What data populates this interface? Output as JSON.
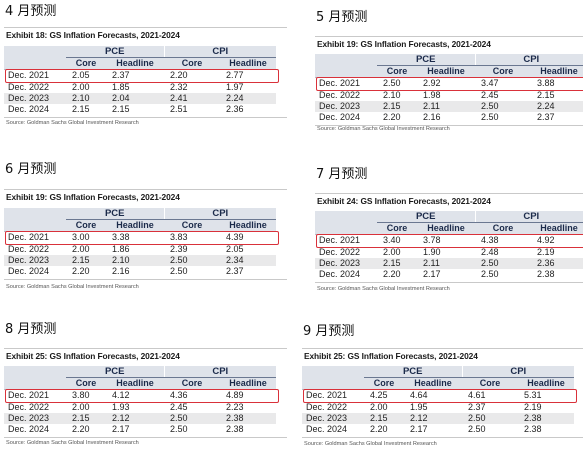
{
  "panels": [
    {
      "month": "4 月预测",
      "title": "Exhibit 18: GS Inflation Forecasts, 2021-2024",
      "group_pce": "PCE",
      "group_cpi": "CPI",
      "sub": [
        "Core",
        "Headline",
        "Core",
        "Headline"
      ],
      "rows": [
        [
          "Dec. 2021",
          "2.05",
          "2.37",
          "2.20",
          "2.77"
        ],
        [
          "Dec. 2022",
          "2.00",
          "1.85",
          "2.32",
          "1.97"
        ],
        [
          "Dec. 2023",
          "2.10",
          "2.04",
          "2.41",
          "2.24"
        ],
        [
          "Dec. 2024",
          "2.15",
          "2.15",
          "2.51",
          "2.36"
        ]
      ],
      "source": "Source: Goldman Sachs Global Investment Research"
    },
    {
      "month": "5 月预测",
      "title": "Exhibit 19: GS Inflation Forecasts, 2021-2024",
      "group_pce": "PCE",
      "group_cpi": "CPI",
      "sub": [
        "Core",
        "Headline",
        "Core",
        "Headline"
      ],
      "rows": [
        [
          "Dec. 2021",
          "2.50",
          "2.92",
          "3.47",
          "3.88"
        ],
        [
          "Dec. 2022",
          "2.10",
          "1.98",
          "2.45",
          "2.15"
        ],
        [
          "Dec. 2023",
          "2.15",
          "2.11",
          "2.50",
          "2.24"
        ],
        [
          "Dec. 2024",
          "2.20",
          "2.16",
          "2.50",
          "2.37"
        ]
      ],
      "source": "Source: Goldman Sachs Global Investment Research"
    },
    {
      "month": "6 月预测",
      "title": "Exhibit 19: GS Inflation Forecasts, 2021-2024",
      "group_pce": "PCE",
      "group_cpi": "CPI",
      "sub": [
        "Core",
        "Headline",
        "Core",
        "Headline"
      ],
      "rows": [
        [
          "Dec. 2021",
          "3.00",
          "3.38",
          "3.83",
          "4.39"
        ],
        [
          "Dec. 2022",
          "2.00",
          "1.86",
          "2.39",
          "2.05"
        ],
        [
          "Dec. 2023",
          "2.15",
          "2.10",
          "2.50",
          "2.34"
        ],
        [
          "Dec. 2024",
          "2.20",
          "2.16",
          "2.50",
          "2.37"
        ]
      ],
      "source": "Source: Goldman Sachs Global Investment Research"
    },
    {
      "month": "7 月预测",
      "title": "Exhibit 24: GS Inflation Forecasts, 2021-2024",
      "group_pce": "PCE",
      "group_cpi": "CPI",
      "sub": [
        "Core",
        "Headline",
        "Core",
        "Headline"
      ],
      "rows": [
        [
          "Dec. 2021",
          "3.40",
          "3.78",
          "4.38",
          "4.92"
        ],
        [
          "Dec. 2022",
          "2.00",
          "1.90",
          "2.48",
          "2.19"
        ],
        [
          "Dec. 2023",
          "2.15",
          "2.11",
          "2.50",
          "2.36"
        ],
        [
          "Dec. 2024",
          "2.20",
          "2.17",
          "2.50",
          "2.38"
        ]
      ],
      "source": "Source: Goldman Sachs Global Investment Research"
    },
    {
      "month": "8 月预测",
      "title": "Exhibit 25: GS Inflation Forecasts, 2021-2024",
      "group_pce": "PCE",
      "group_cpi": "CPI",
      "sub": [
        "Core",
        "Headline",
        "Core",
        "Headline"
      ],
      "rows": [
        [
          "Dec. 2021",
          "3.80",
          "4.12",
          "4.36",
          "4.89"
        ],
        [
          "Dec. 2022",
          "2.00",
          "1.93",
          "2.45",
          "2.23"
        ],
        [
          "Dec. 2023",
          "2.15",
          "2.12",
          "2.50",
          "2.38"
        ],
        [
          "Dec. 2024",
          "2.20",
          "2.17",
          "2.50",
          "2.38"
        ]
      ],
      "source": "Source: Goldman Sachs Global Investment Research"
    },
    {
      "month": "9 月预测",
      "title": "Exhibit 25: GS Inflation Forecasts, 2021-2024",
      "group_pce": "PCE",
      "group_cpi": "CPI",
      "sub": [
        "Core",
        "Headline",
        "Core",
        "Headline"
      ],
      "rows": [
        [
          "Dec. 2021",
          "4.25",
          "4.64",
          "4.61",
          "5.31"
        ],
        [
          "Dec. 2022",
          "2.00",
          "1.95",
          "2.37",
          "2.19"
        ],
        [
          "Dec. 2023",
          "2.15",
          "2.12",
          "2.50",
          "2.38"
        ],
        [
          "Dec. 2024",
          "2.20",
          "2.17",
          "2.50",
          "2.38"
        ]
      ],
      "source": "Source: Goldman Sachs Global Investment Research"
    }
  ],
  "colors": {
    "highlight": "#d9313a",
    "header_bg": "#dfe3ea",
    "stripe": "#e9e9ea"
  }
}
